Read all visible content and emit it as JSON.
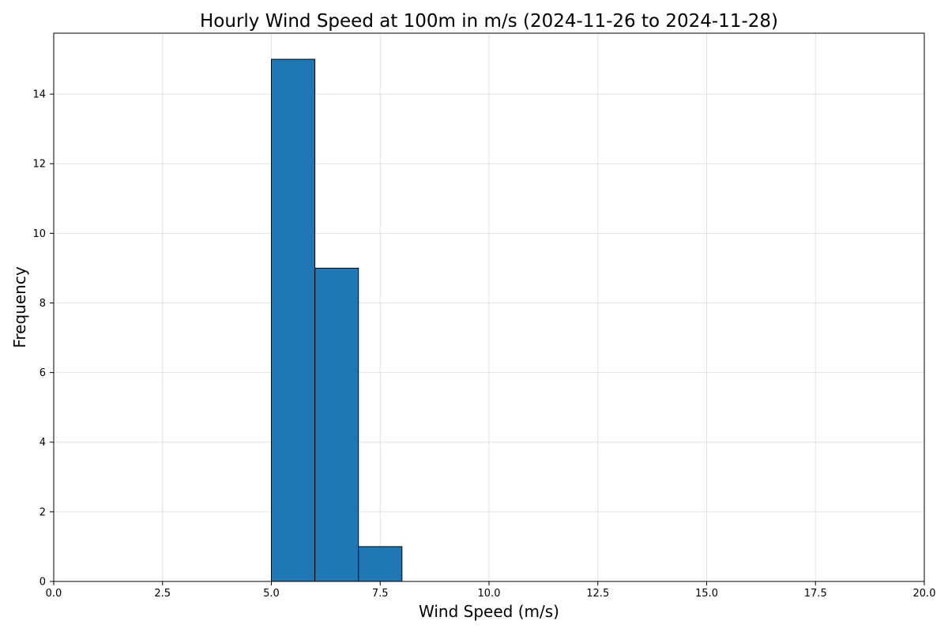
{
  "chart_data": {
    "type": "bar",
    "title": "Hourly Wind Speed at 100m in m/s (2024-11-26 to 2024-11-28)",
    "xlabel": "Wind Speed (m/s)",
    "ylabel": "Frequency",
    "xlim": [
      0,
      20
    ],
    "ylim": [
      0,
      15.75
    ],
    "xticks": [
      0,
      2.5,
      5,
      7.5,
      10,
      12.5,
      15,
      17.5,
      20
    ],
    "xtick_labels": [
      "0.0",
      "2.5",
      "5.0",
      "7.5",
      "10.0",
      "12.5",
      "15.0",
      "17.5",
      "20.0"
    ],
    "yticks": [
      0,
      2,
      4,
      6,
      8,
      10,
      12,
      14
    ],
    "ytick_labels": [
      "0",
      "2",
      "4",
      "6",
      "8",
      "10",
      "12",
      "14"
    ],
    "grid": true,
    "bins": [
      {
        "start": 5,
        "end": 6,
        "value": 15
      },
      {
        "start": 6,
        "end": 7,
        "value": 9
      },
      {
        "start": 7,
        "end": 8,
        "value": 1
      }
    ],
    "colors": {
      "bar_fill": "#1f77b4",
      "bar_edge": "#000000"
    }
  }
}
